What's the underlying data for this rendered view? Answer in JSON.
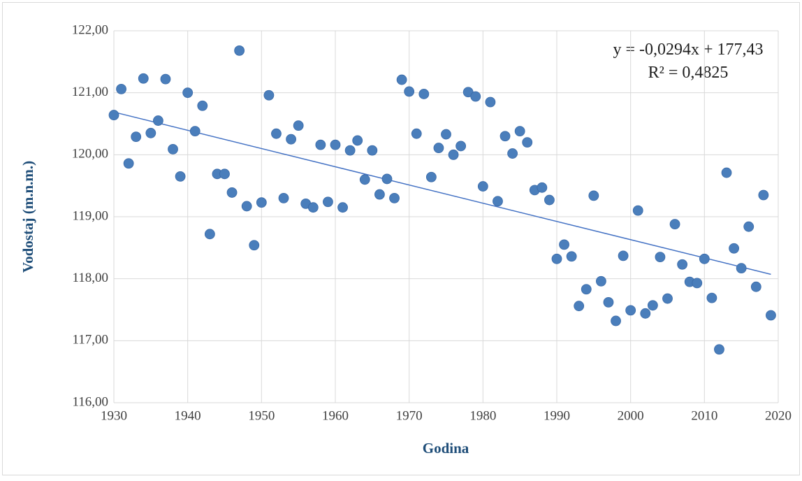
{
  "chart_data": {
    "type": "scatter",
    "x_label": "Godina",
    "y_label": "Vodostaj (m.n.m.)",
    "x": [
      1930,
      1931,
      1932,
      1933,
      1934,
      1935,
      1936,
      1937,
      1938,
      1939,
      1940,
      1941,
      1942,
      1943,
      1944,
      1945,
      1946,
      1947,
      1948,
      1949,
      1950,
      1951,
      1952,
      1953,
      1954,
      1955,
      1956,
      1957,
      1958,
      1959,
      1960,
      1961,
      1962,
      1963,
      1964,
      1965,
      1966,
      1967,
      1968,
      1969,
      1970,
      1971,
      1972,
      1973,
      1974,
      1975,
      1976,
      1977,
      1978,
      1979,
      1980,
      1981,
      1982,
      1983,
      1984,
      1985,
      1986,
      1987,
      1988,
      1989,
      1990,
      1991,
      1992,
      1993,
      1994,
      1995,
      1996,
      1997,
      1998,
      1999,
      2000,
      2001,
      2002,
      2003,
      2004,
      2005,
      2006,
      2007,
      2008,
      2009,
      2010,
      2011,
      2012,
      2013,
      2014,
      2015,
      2016,
      2017,
      2018,
      2019
    ],
    "values": [
      120.64,
      121.06,
      119.86,
      120.29,
      121.23,
      120.35,
      120.55,
      121.22,
      120.09,
      119.65,
      121.0,
      120.38,
      120.79,
      118.72,
      119.69,
      119.69,
      119.39,
      121.68,
      119.17,
      118.54,
      119.23,
      120.96,
      120.34,
      119.3,
      120.25,
      120.47,
      119.21,
      119.15,
      120.16,
      119.24,
      120.16,
      119.15,
      120.07,
      120.23,
      119.6,
      120.07,
      119.36,
      119.61,
      119.3,
      121.21,
      121.02,
      120.34,
      120.98,
      119.64,
      120.11,
      120.33,
      120.0,
      120.14,
      121.01,
      120.94,
      119.49,
      120.85,
      119.25,
      120.3,
      120.02,
      120.38,
      120.2,
      119.43,
      119.47,
      119.27,
      118.32,
      118.55,
      118.36,
      117.56,
      117.83,
      119.34,
      117.96,
      117.62,
      117.32,
      118.37,
      117.49,
      119.1,
      117.44,
      117.57,
      118.35,
      117.68,
      118.88,
      118.23,
      117.95,
      117.93,
      118.32,
      117.69,
      116.86,
      119.71,
      118.49,
      118.17,
      118.84,
      117.87,
      119.35,
      117.41
    ],
    "color": "#4a7ebb",
    "trendline": {
      "slope": -0.0294,
      "intercept": 177.43,
      "color": "#4472c4",
      "equation": "y = -0,0294x + 177,43",
      "r2_label": "R² = 0,4825"
    },
    "xlim": [
      1930,
      2020
    ],
    "xticks": [
      1930,
      1940,
      1950,
      1960,
      1970,
      1980,
      1990,
      2000,
      2010,
      2020
    ],
    "ylim": [
      116,
      122
    ],
    "yticks": [
      {
        "value": 116,
        "label": "116,00"
      },
      {
        "value": 117,
        "label": "117,00"
      },
      {
        "value": 118,
        "label": "118,00"
      },
      {
        "value": 119,
        "label": "119,00"
      },
      {
        "value": 120,
        "label": "120,00"
      },
      {
        "value": 121,
        "label": "121,00"
      },
      {
        "value": 122,
        "label": "122,00"
      }
    ],
    "grid": true
  }
}
